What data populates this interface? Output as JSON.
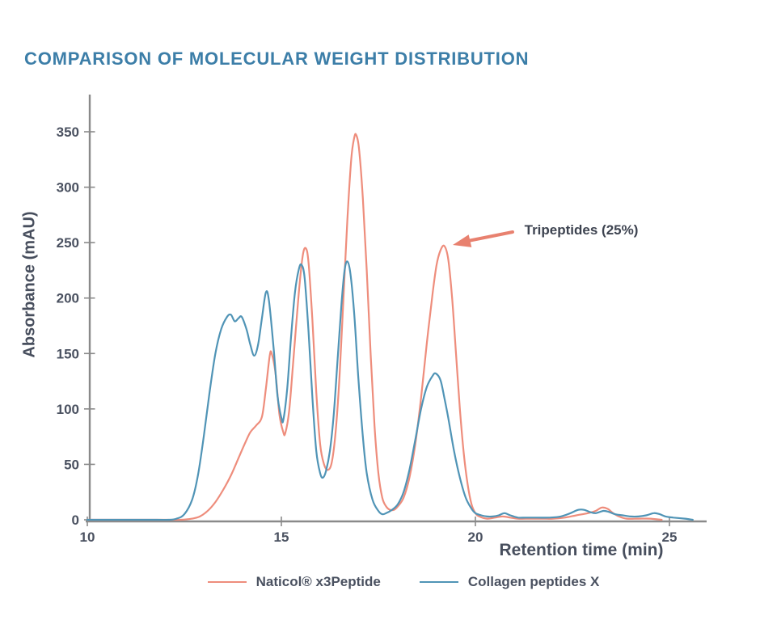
{
  "title": "COMPARISON OF MOLECULAR WEIGHT DISTRIBUTION",
  "colors": {
    "title": "#3c7ea8",
    "text": "#474e5d",
    "axis": "#8a8a8a",
    "naticol_red": "#ee8d7c",
    "collagen_blue": "#5094b6",
    "arrow": "#e8816f"
  },
  "chart_data": {
    "type": "line",
    "title": "COMPARISON OF MOLECULAR WEIGHT DISTRIBUTION",
    "xlabel": "Retention time (min)",
    "ylabel": "Absorbance (mAU)",
    "xlim": [
      10,
      26
    ],
    "ylim": [
      0,
      370
    ],
    "xticks": [
      10,
      15,
      20,
      25
    ],
    "yticks": [
      0,
      50,
      100,
      150,
      200,
      250,
      300,
      350
    ],
    "grid": false,
    "legend_position": "bottom-center",
    "annotation": {
      "text": "Tripeptides (25%)",
      "target_series": "Naticol® x3Peptide",
      "target_x": 19.2,
      "target_y": 247
    },
    "series": [
      {
        "name": "Naticol® x3Peptide",
        "color": "#ee8d7c",
        "points": [
          [
            10,
            0
          ],
          [
            11,
            0
          ],
          [
            12,
            0
          ],
          [
            12.4,
            0
          ],
          [
            12.7,
            1
          ],
          [
            12.9,
            3
          ],
          [
            13.1,
            8
          ],
          [
            13.3,
            16
          ],
          [
            13.5,
            27
          ],
          [
            13.7,
            40
          ],
          [
            13.9,
            56
          ],
          [
            14.05,
            68
          ],
          [
            14.2,
            79
          ],
          [
            14.35,
            85
          ],
          [
            14.5,
            93
          ],
          [
            14.6,
            118
          ],
          [
            14.7,
            148
          ],
          [
            14.75,
            150
          ],
          [
            14.85,
            132
          ],
          [
            14.95,
            95
          ],
          [
            15.05,
            79
          ],
          [
            15.1,
            78
          ],
          [
            15.2,
            98
          ],
          [
            15.3,
            140
          ],
          [
            15.45,
            205
          ],
          [
            15.55,
            238
          ],
          [
            15.63,
            245
          ],
          [
            15.7,
            232
          ],
          [
            15.8,
            180
          ],
          [
            15.9,
            115
          ],
          [
            16.0,
            68
          ],
          [
            16.1,
            50
          ],
          [
            16.2,
            45
          ],
          [
            16.3,
            52
          ],
          [
            16.4,
            80
          ],
          [
            16.5,
            130
          ],
          [
            16.6,
            200
          ],
          [
            16.7,
            270
          ],
          [
            16.8,
            325
          ],
          [
            16.88,
            345
          ],
          [
            16.93,
            347
          ],
          [
            17.0,
            335
          ],
          [
            17.1,
            290
          ],
          [
            17.2,
            225
          ],
          [
            17.3,
            150
          ],
          [
            17.4,
            85
          ],
          [
            17.5,
            42
          ],
          [
            17.6,
            20
          ],
          [
            17.7,
            12
          ],
          [
            17.8,
            9
          ],
          [
            17.9,
            9
          ],
          [
            18.0,
            12
          ],
          [
            18.15,
            20
          ],
          [
            18.3,
            38
          ],
          [
            18.45,
            68
          ],
          [
            18.6,
            110
          ],
          [
            18.75,
            160
          ],
          [
            18.9,
            205
          ],
          [
            19.0,
            230
          ],
          [
            19.1,
            243
          ],
          [
            19.2,
            247
          ],
          [
            19.3,
            235
          ],
          [
            19.4,
            200
          ],
          [
            19.5,
            150
          ],
          [
            19.6,
            100
          ],
          [
            19.7,
            60
          ],
          [
            19.8,
            32
          ],
          [
            19.9,
            14
          ],
          [
            20.0,
            6
          ],
          [
            20.1,
            3
          ],
          [
            20.3,
            1
          ],
          [
            20.5,
            2
          ],
          [
            20.7,
            3
          ],
          [
            20.9,
            2
          ],
          [
            21.1,
            1
          ],
          [
            21.4,
            1
          ],
          [
            21.7,
            1
          ],
          [
            22.0,
            1
          ],
          [
            22.3,
            2
          ],
          [
            22.6,
            4
          ],
          [
            22.9,
            6
          ],
          [
            23.1,
            8
          ],
          [
            23.25,
            11
          ],
          [
            23.4,
            10
          ],
          [
            23.55,
            6
          ],
          [
            23.7,
            3
          ],
          [
            23.9,
            1
          ],
          [
            24.2,
            1
          ],
          [
            24.5,
            1
          ],
          [
            24.8,
            0
          ]
        ]
      },
      {
        "name": "Collagen peptides X",
        "color": "#5094b6",
        "points": [
          [
            10,
            0
          ],
          [
            11,
            0
          ],
          [
            11.8,
            0
          ],
          [
            12.1,
            0
          ],
          [
            12.3,
            1
          ],
          [
            12.5,
            5
          ],
          [
            12.7,
            18
          ],
          [
            12.85,
            40
          ],
          [
            13.0,
            75
          ],
          [
            13.15,
            115
          ],
          [
            13.3,
            150
          ],
          [
            13.45,
            172
          ],
          [
            13.6,
            183
          ],
          [
            13.7,
            185
          ],
          [
            13.8,
            179
          ],
          [
            13.9,
            182
          ],
          [
            13.98,
            183
          ],
          [
            14.1,
            172
          ],
          [
            14.2,
            158
          ],
          [
            14.3,
            148
          ],
          [
            14.4,
            158
          ],
          [
            14.5,
            182
          ],
          [
            14.6,
            205
          ],
          [
            14.68,
            198
          ],
          [
            14.8,
            155
          ],
          [
            14.9,
            112
          ],
          [
            15.0,
            92
          ],
          [
            15.05,
            90
          ],
          [
            15.15,
            118
          ],
          [
            15.25,
            165
          ],
          [
            15.35,
            205
          ],
          [
            15.45,
            226
          ],
          [
            15.52,
            230
          ],
          [
            15.6,
            218
          ],
          [
            15.7,
            170
          ],
          [
            15.8,
            110
          ],
          [
            15.9,
            62
          ],
          [
            16.0,
            42
          ],
          [
            16.07,
            38
          ],
          [
            16.15,
            44
          ],
          [
            16.25,
            62
          ],
          [
            16.35,
            95
          ],
          [
            16.45,
            145
          ],
          [
            16.55,
            195
          ],
          [
            16.63,
            225
          ],
          [
            16.7,
            233
          ],
          [
            16.78,
            222
          ],
          [
            16.88,
            185
          ],
          [
            16.98,
            130
          ],
          [
            17.1,
            75
          ],
          [
            17.2,
            42
          ],
          [
            17.35,
            18
          ],
          [
            17.5,
            8
          ],
          [
            17.6,
            5
          ],
          [
            17.7,
            6
          ],
          [
            17.85,
            9
          ],
          [
            18.0,
            14
          ],
          [
            18.15,
            25
          ],
          [
            18.3,
            45
          ],
          [
            18.45,
            72
          ],
          [
            18.6,
            100
          ],
          [
            18.75,
            120
          ],
          [
            18.9,
            130
          ],
          [
            18.98,
            132
          ],
          [
            19.1,
            126
          ],
          [
            19.2,
            110
          ],
          [
            19.3,
            92
          ],
          [
            19.45,
            62
          ],
          [
            19.6,
            38
          ],
          [
            19.75,
            20
          ],
          [
            19.9,
            10
          ],
          [
            20.0,
            6
          ],
          [
            20.15,
            4
          ],
          [
            20.3,
            3
          ],
          [
            20.45,
            3
          ],
          [
            20.6,
            4
          ],
          [
            20.75,
            6
          ],
          [
            20.9,
            4
          ],
          [
            21.1,
            2
          ],
          [
            21.3,
            2
          ],
          [
            21.6,
            2
          ],
          [
            21.9,
            2
          ],
          [
            22.2,
            3
          ],
          [
            22.45,
            6
          ],
          [
            22.65,
            9
          ],
          [
            22.8,
            9
          ],
          [
            22.95,
            7
          ],
          [
            23.1,
            6
          ],
          [
            23.3,
            8
          ],
          [
            23.45,
            7
          ],
          [
            23.6,
            5
          ],
          [
            23.8,
            4
          ],
          [
            24.0,
            3
          ],
          [
            24.2,
            3
          ],
          [
            24.4,
            4
          ],
          [
            24.6,
            6
          ],
          [
            24.75,
            5
          ],
          [
            24.9,
            3
          ],
          [
            25.1,
            2
          ],
          [
            25.4,
            1
          ],
          [
            25.6,
            0
          ]
        ]
      }
    ]
  }
}
